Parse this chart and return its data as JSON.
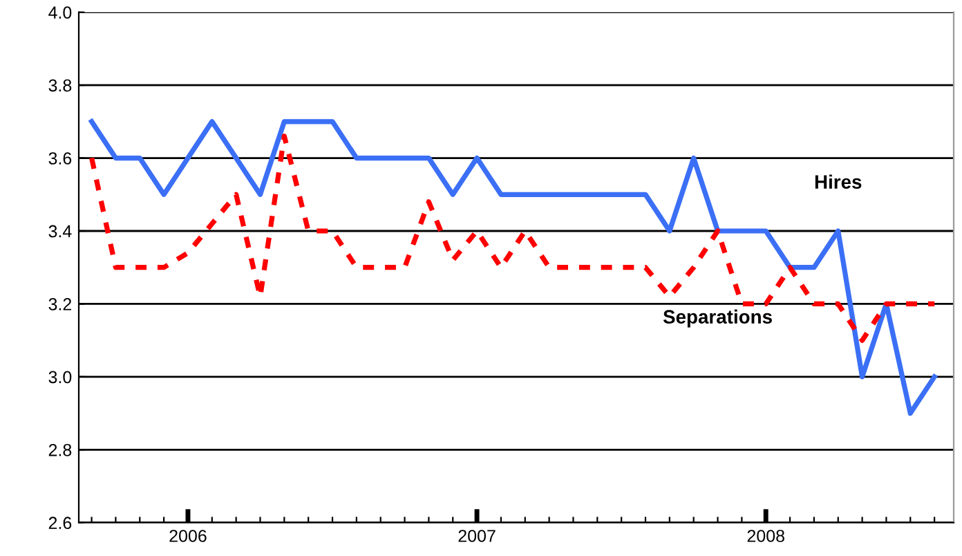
{
  "chart_data": {
    "type": "line",
    "x": [
      "2005-09",
      "2005-10",
      "2005-11",
      "2005-12",
      "2006-01",
      "2006-02",
      "2006-03",
      "2006-04",
      "2006-05",
      "2006-06",
      "2006-07",
      "2006-08",
      "2006-09",
      "2006-10",
      "2006-11",
      "2006-12",
      "2007-01",
      "2007-02",
      "2007-03",
      "2007-04",
      "2007-05",
      "2007-06",
      "2007-07",
      "2007-08",
      "2007-09",
      "2007-10",
      "2007-11",
      "2007-12",
      "2008-01",
      "2008-02",
      "2008-03",
      "2008-04",
      "2008-05",
      "2008-06",
      "2008-07",
      "2008-08"
    ],
    "series": [
      {
        "name": "Hires",
        "color": "#3b6ff5",
        "line_style": "solid",
        "values": [
          3.7,
          3.6,
          3.6,
          3.5,
          3.6,
          3.7,
          3.6,
          3.5,
          3.7,
          3.7,
          3.7,
          3.6,
          3.6,
          3.6,
          3.6,
          3.5,
          3.6,
          3.5,
          3.5,
          3.5,
          3.5,
          3.5,
          3.5,
          3.5,
          3.4,
          3.6,
          3.4,
          3.4,
          3.4,
          3.3,
          3.3,
          3.4,
          3.0,
          3.2,
          2.9,
          3.0
        ]
      },
      {
        "name": "Separations",
        "color": "#ff0000",
        "line_style": "dashed",
        "values": [
          3.6,
          3.3,
          3.3,
          3.3,
          3.34,
          3.42,
          3.5,
          3.22,
          3.66,
          3.4,
          3.4,
          3.3,
          3.3,
          3.3,
          3.48,
          3.32,
          3.4,
          3.3,
          3.4,
          3.3,
          3.3,
          3.3,
          3.3,
          3.3,
          3.22,
          3.3,
          3.4,
          3.2,
          3.2,
          3.3,
          3.2,
          3.2,
          3.1,
          3.2,
          3.2,
          3.2
        ]
      }
    ],
    "xlim": [
      "2005-08-15",
      "2008-08-25"
    ],
    "xticks": [
      {
        "value": "2006-01",
        "label": "2006"
      },
      {
        "value": "2007-01",
        "label": "2007"
      },
      {
        "value": "2008-01",
        "label": "2008"
      }
    ],
    "ylim": [
      2.6,
      4.0
    ],
    "yticks": [
      {
        "value": 2.6,
        "label": "2.6"
      },
      {
        "value": 2.8,
        "label": "2.8"
      },
      {
        "value": 3.0,
        "label": "3.0"
      },
      {
        "value": 3.2,
        "label": "3.2"
      },
      {
        "value": 3.4,
        "label": "3.4"
      },
      {
        "value": 3.6,
        "label": "3.6"
      },
      {
        "value": 3.8,
        "label": "3.8"
      },
      {
        "value": 4.0,
        "label": "4.0"
      }
    ],
    "grid": "y",
    "legend": false,
    "marker": "none"
  }
}
